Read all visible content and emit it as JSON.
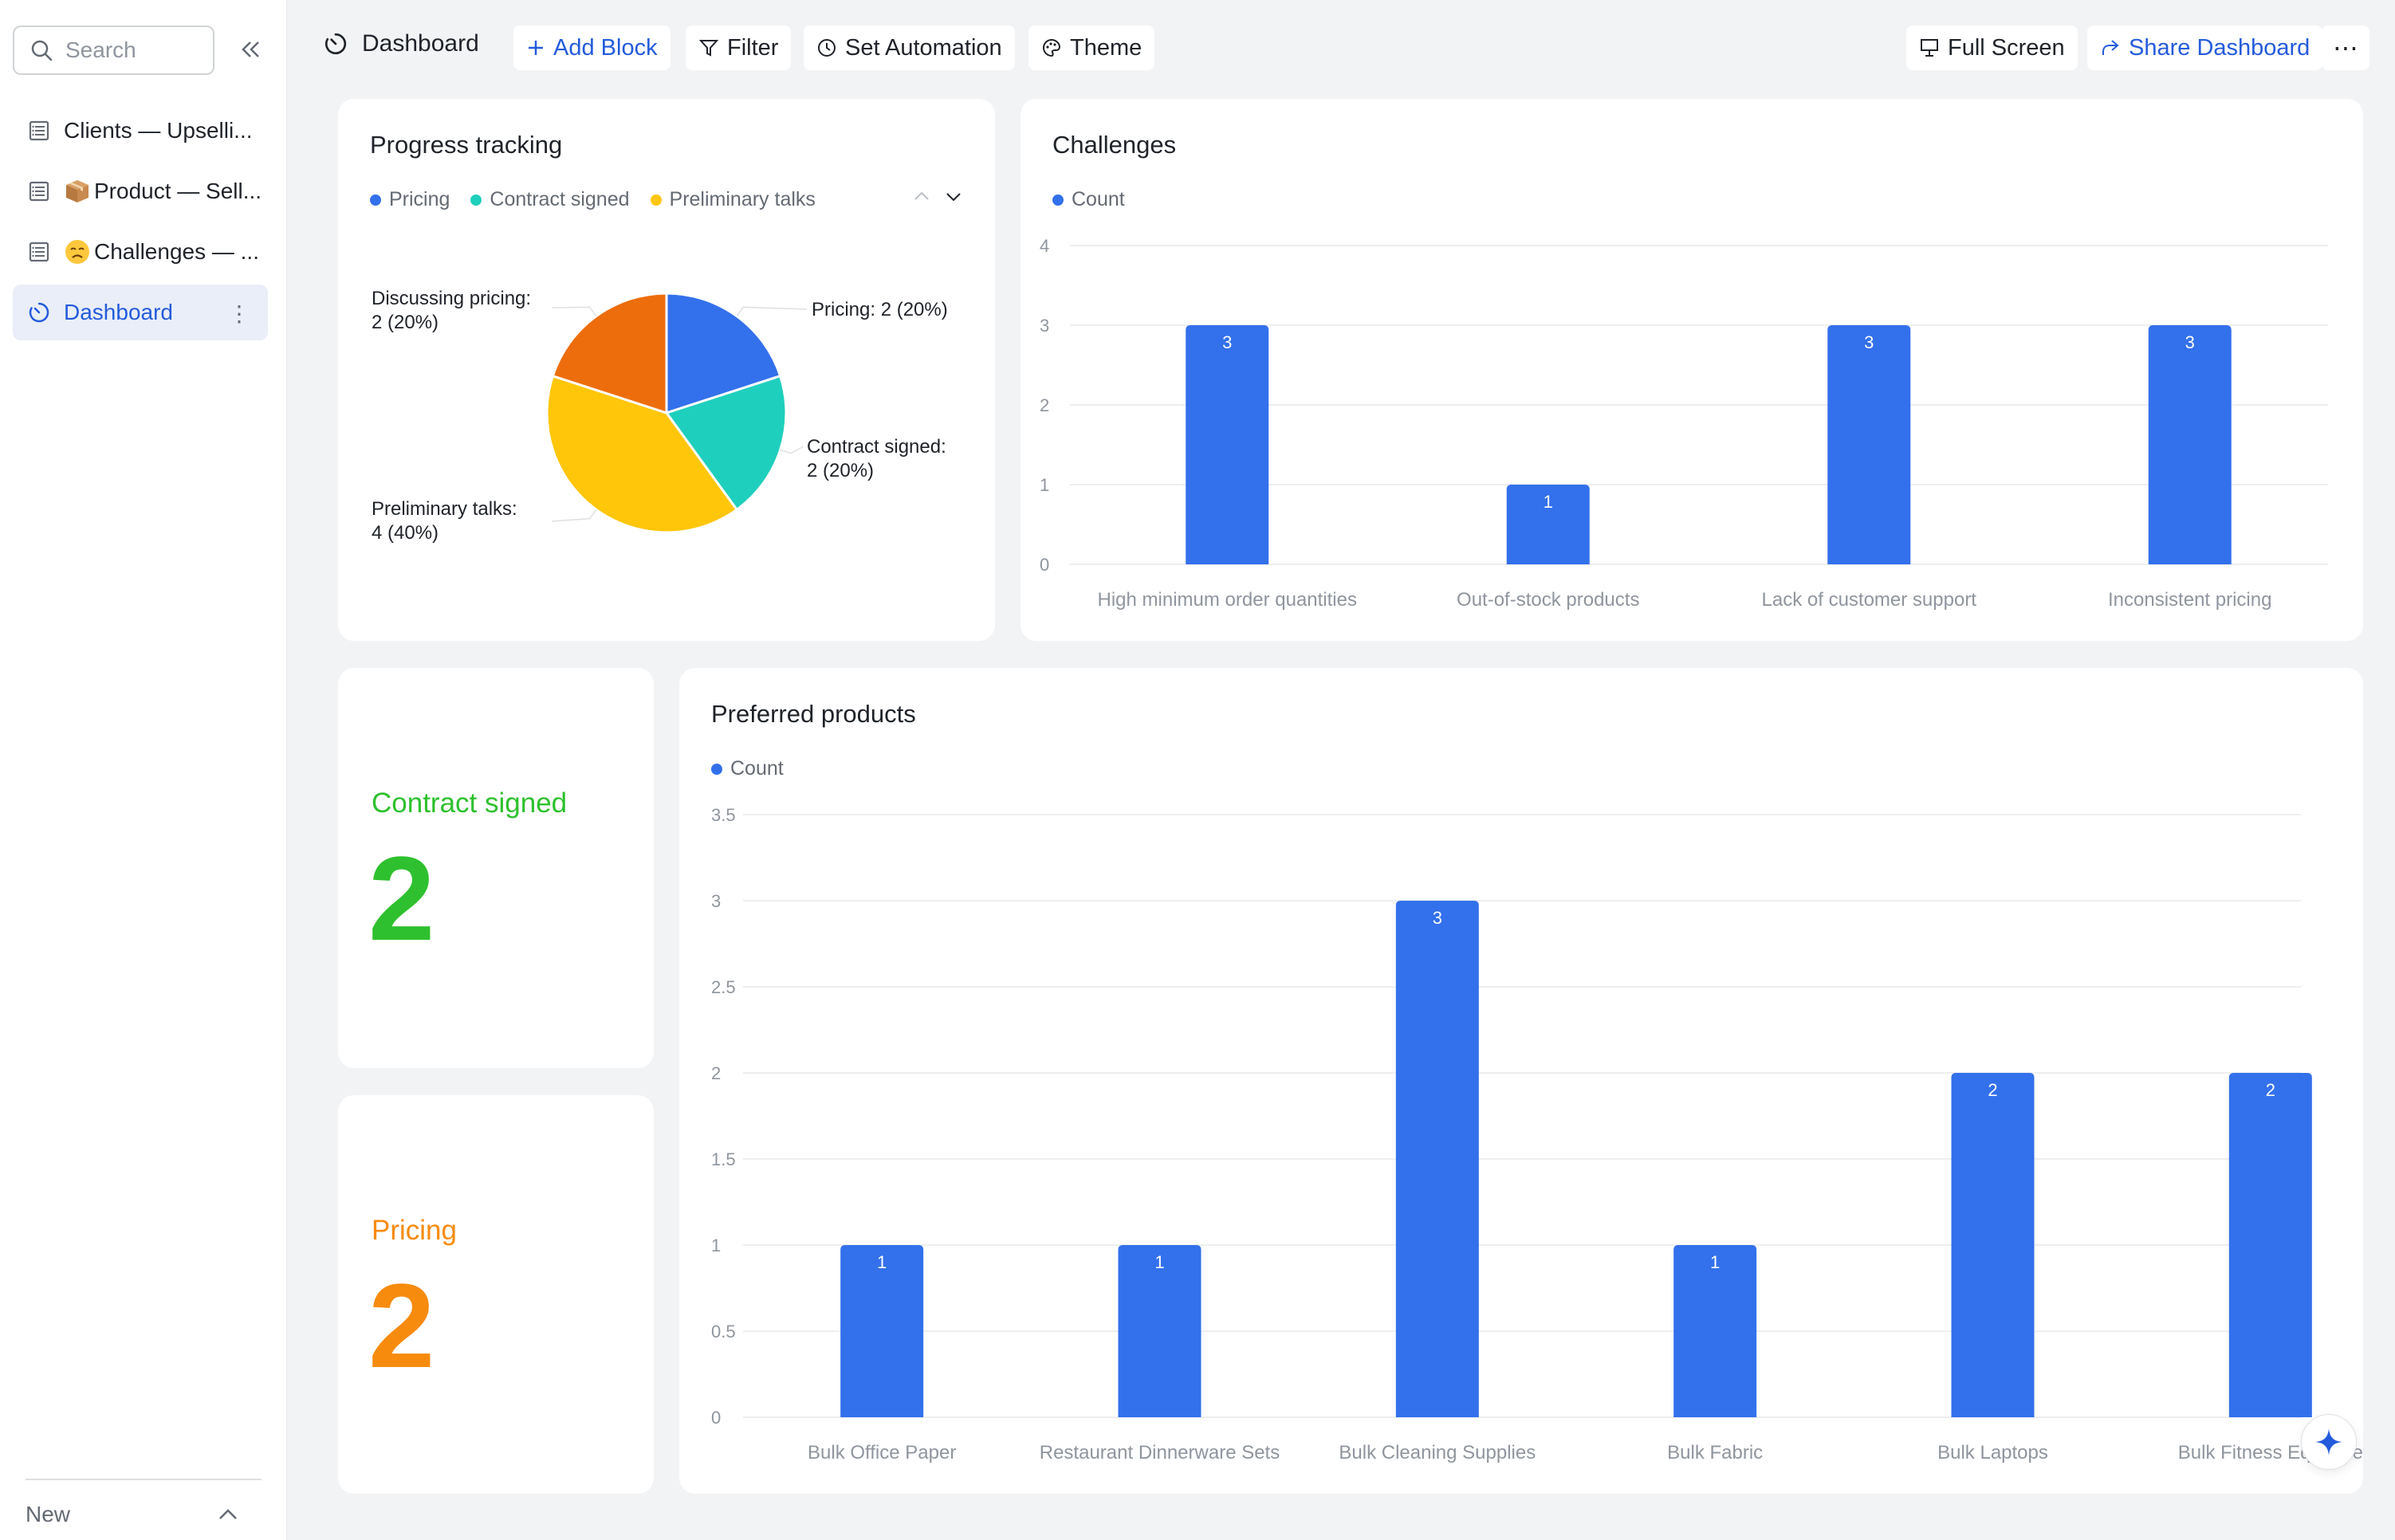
{
  "sidebar": {
    "search_placeholder": "Search",
    "items": [
      {
        "label": "Clients — Upselli...",
        "icon": "table-icon"
      },
      {
        "label": "Product — Sell...",
        "icon": "table-icon",
        "emoji": "package-emoji"
      },
      {
        "label": "Challenges — ...",
        "icon": "table-icon",
        "emoji": "weary-face-emoji"
      },
      {
        "label": "Dashboard",
        "icon": "dashboard-icon",
        "active": true
      }
    ],
    "new_label": "New"
  },
  "toolbar": {
    "title": "Dashboard",
    "add_block": "Add Block",
    "filter": "Filter",
    "set_automation": "Set Automation",
    "theme": "Theme",
    "full_screen": "Full Screen",
    "share_dashboard": "Share Dashboard"
  },
  "colors": {
    "accent": "#245bdb",
    "bar": "#3370eb",
    "pricing": "#3370eb",
    "contract_signed": "#1fcfbd",
    "preliminary_talks": "#ffc60a",
    "discussing_pricing": "#ed6d0c",
    "kpi_green": "#2ec02e",
    "kpi_orange": "#f78b0d"
  },
  "progress": {
    "title": "Progress tracking",
    "legend": [
      "Pricing",
      "Contract signed",
      "Preliminary talks"
    ]
  },
  "challenges": {
    "title": "Challenges",
    "legend": "Count"
  },
  "kpis": {
    "contract": {
      "label": "Contract signed",
      "value": "2"
    },
    "pricing": {
      "label": "Pricing",
      "value": "2"
    }
  },
  "preferred": {
    "title": "Preferred products",
    "legend": "Count"
  },
  "chart_data": [
    {
      "type": "pie",
      "title": "Progress tracking",
      "slices": [
        {
          "name": "Pricing",
          "value": 2,
          "label_text": "Pricing: 2 (20%)"
        },
        {
          "name": "Contract signed",
          "value": 2,
          "label_text": "Contract signed:",
          "label_text2": "2 (20%)"
        },
        {
          "name": "Preliminary talks",
          "value": 4,
          "label_text": "Preliminary talks:",
          "label_text2": "4 (40%)"
        },
        {
          "name": "Discussing pricing",
          "value": 2,
          "label_text": "Discussing pricing:",
          "label_text2": "2 (20%)"
        }
      ],
      "legend_placement": "top-left"
    },
    {
      "type": "bar",
      "title": "Challenges",
      "categories": [
        "High minimum order quantities",
        "Out-of-stock products",
        "Lack of customer support",
        "Inconsistent pricing"
      ],
      "series": [
        {
          "name": "Count",
          "values": [
            3,
            1,
            3,
            3
          ]
        }
      ],
      "yticks": [
        "0",
        "1",
        "2",
        "3",
        "4"
      ],
      "ylim": [
        0,
        4
      ],
      "grid": true
    },
    {
      "type": "bar",
      "title": "Preferred products",
      "categories": [
        "Bulk Office Paper",
        "Restaurant Dinnerware Sets",
        "Bulk Cleaning Supplies",
        "Bulk Fabric",
        "Bulk Laptops",
        "Bulk Fitness Equipme"
      ],
      "series": [
        {
          "name": "Count",
          "values": [
            1,
            1,
            3,
            1,
            2,
            2
          ]
        }
      ],
      "yticks": [
        "0",
        "0.5",
        "1",
        "1.5",
        "2",
        "2.5",
        "3",
        "3.5"
      ],
      "ylim": [
        0,
        3.5
      ],
      "grid": true
    }
  ]
}
